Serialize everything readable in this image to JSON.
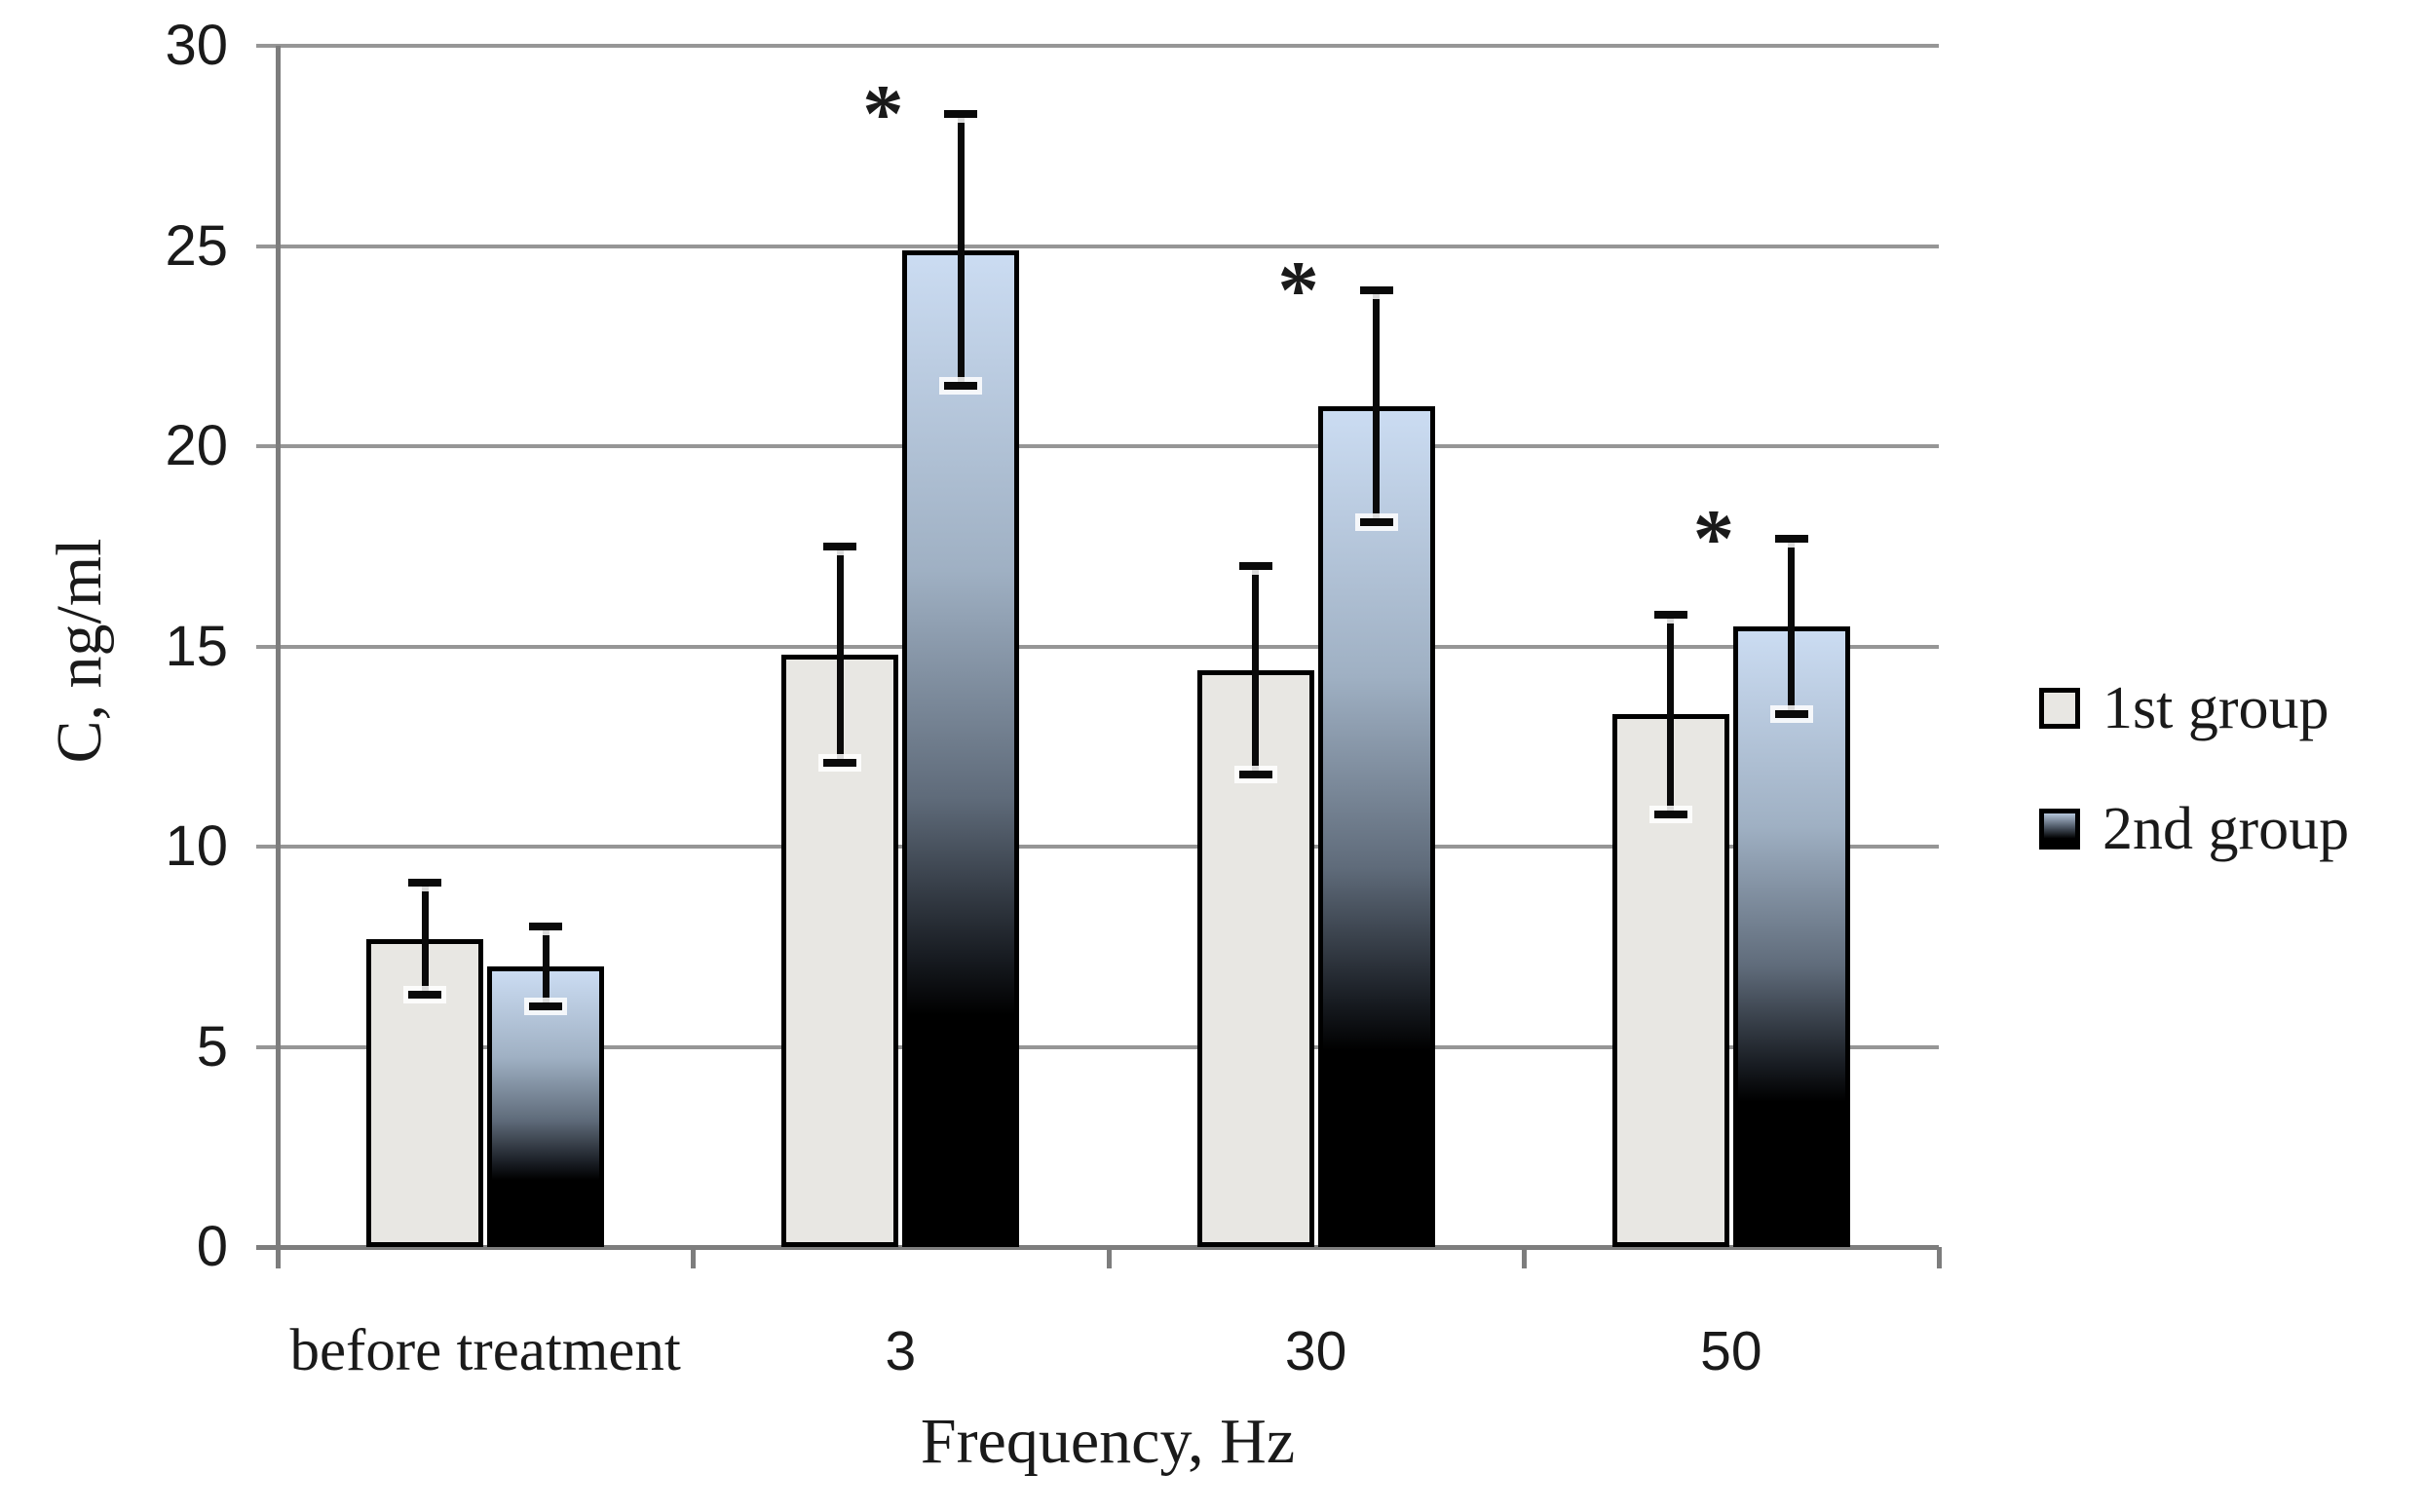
{
  "chart_data": {
    "type": "bar",
    "title": "",
    "xlabel": "Frequency, Hz",
    "ylabel": "C, ng/ml",
    "categories": [
      "before treatment",
      "3",
      "30",
      "50"
    ],
    "series": [
      {
        "name": "1st group",
        "values": [
          7.7,
          14.8,
          14.4,
          13.3
        ],
        "errors": [
          1.4,
          2.7,
          2.6,
          2.5
        ],
        "significant": [
          false,
          false,
          false,
          false
        ]
      },
      {
        "name": "2nd group",
        "values": [
          7.0,
          24.9,
          21.0,
          15.5
        ],
        "errors": [
          1.0,
          3.4,
          2.9,
          2.2
        ],
        "significant": [
          false,
          true,
          true,
          true
        ]
      }
    ],
    "significance_marker": "*",
    "ylim": [
      0,
      30
    ],
    "yticks": [
      0,
      5,
      10,
      15,
      20,
      25,
      30
    ],
    "grid": true,
    "legend_position": "right",
    "error_bars": true
  },
  "colors": {
    "group1_fill": "#e8e7e3",
    "group2_gradient_top": "#cbdcf2",
    "group2_gradient_mid": "#5f6b7a",
    "group2_gradient_bottom": "#000000",
    "bar_border": "#000000",
    "error_bar": "#0a0a0a",
    "gridline": "#969696",
    "axis": "#7d7d7d",
    "text": "#1a1a1a",
    "background": "#ffffff"
  }
}
